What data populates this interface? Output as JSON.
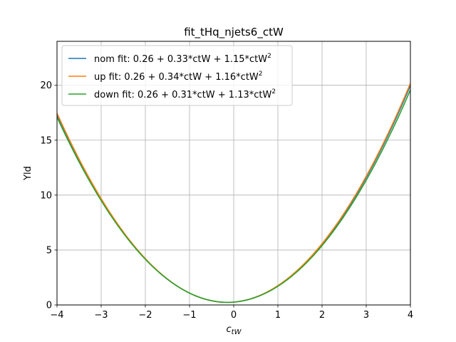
{
  "chart_data": {
    "type": "line",
    "title": "fit_tHq_njets6_ctW",
    "xlabel_main": "c",
    "xlabel_sub": "tW",
    "ylabel": "Yld",
    "xlim": [
      -4,
      4
    ],
    "ylim": [
      0,
      24
    ],
    "xticks": [
      -4,
      -3,
      -2,
      -1,
      0,
      1,
      2,
      3,
      4
    ],
    "xtick_labels": [
      "−4",
      "−3",
      "−2",
      "−1",
      "0",
      "1",
      "2",
      "3",
      "4"
    ],
    "yticks": [
      0,
      5,
      10,
      15,
      20
    ],
    "ytick_labels": [
      "0",
      "5",
      "10",
      "15",
      "20"
    ],
    "grid": true,
    "legend_placement": "upper-left",
    "series": [
      {
        "name": "nom fit: 0.26 + 0.33*ctW + 1.15*ctW",
        "name_sup": "2",
        "coefficients": [
          0.26,
          0.33,
          1.15
        ],
        "color": "#1f77b4"
      },
      {
        "name": "up fit: 0.26 + 0.34*ctW + 1.16*ctW",
        "name_sup": "2",
        "coefficients": [
          0.26,
          0.34,
          1.16
        ],
        "color": "#ff7f0e"
      },
      {
        "name": "down fit: 0.26 + 0.31*ctW + 1.13*ctW",
        "name_sup": "2",
        "coefficients": [
          0.26,
          0.31,
          1.13
        ],
        "color": "#2ca02c"
      }
    ]
  }
}
